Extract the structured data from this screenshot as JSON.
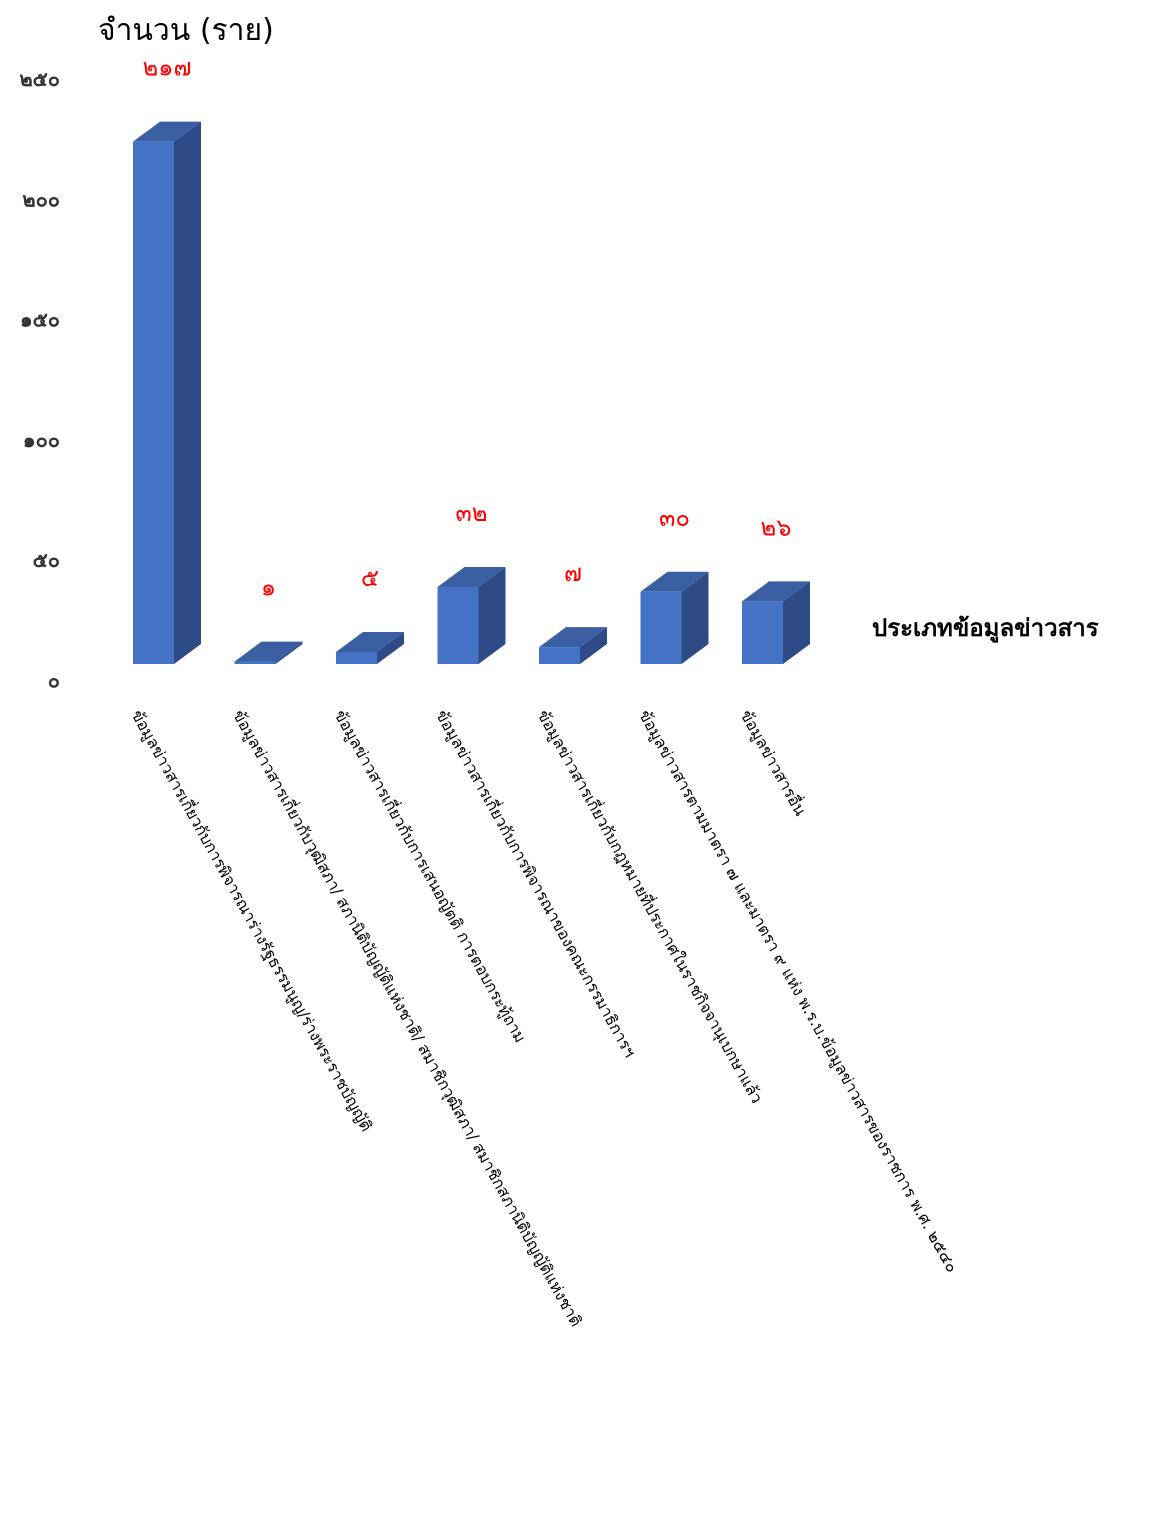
{
  "chart_data": {
    "type": "bar",
    "title": "",
    "ylabel": "จำนวน (ราย)",
    "xlabel": "ประเภทข้อมูลข่าวสาร",
    "ylim": [
      0,
      250
    ],
    "yticks": [
      "๐",
      "๕๐",
      "๑๐๐",
      "๑๕๐",
      "๒๐๐",
      "๒๕๐"
    ],
    "grid": false,
    "style": "3d-column",
    "categories": [
      "ข้อมูลข่าวสารเกี่ยวกับการพิจารณาร่างรัฐธรรมนูญ/ร่างพระราชบัญญัติ",
      "ข้อมูลข่าวสารเกี่ยวกับวุฒิสภา/ สภานิติบัญญัติแห่งชาติ/ สมาชิกวุฒิสภา/ สมาชิกสภานิติบัญญัติแห่งชาติ",
      "ข้อมูลข่าวสารเกี่ยวกับการเสนอญัตติ การตอบกระทู้ถาม",
      "ข้อมูลข่าวสารเกี่ยวกับการพิจารณาของคณะกรรมาธิการฯ",
      "ข้อมูลข่าวสารเกี่ยวกับกฎหมายที่ประกาศในราชกิจจานุเบกษาแล้ว",
      "ข้อมูลข่าวสารตามมาตรา ๗ และมาตรา ๙ แห่ง พ.ร.บ.ข้อมูลข่าวสารของราชการ พ.ศ. ๒๕๔๐",
      "ข้อมูลข่าวสารอื่น"
    ],
    "values": [
      217,
      1,
      5,
      32,
      7,
      30,
      26
    ],
    "value_labels": [
      "๒๑๗",
      "๑",
      "๕",
      "๓๒",
      "๗",
      "๓๐",
      "๒๖"
    ],
    "colors": {
      "front": "#4472c4",
      "side": "#2e4b87",
      "top": "#3a5fa3",
      "data_label": "#ff0000"
    }
  }
}
